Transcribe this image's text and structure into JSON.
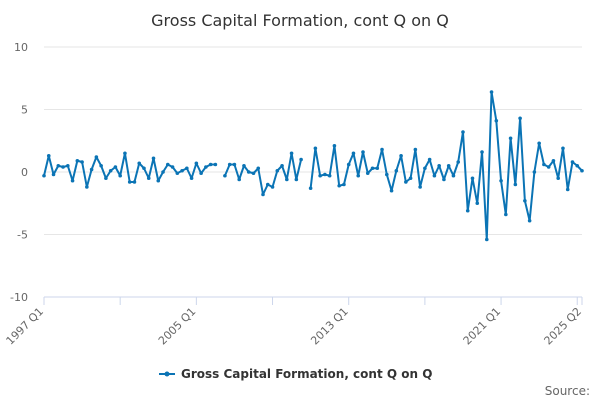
{
  "chart_data": {
    "type": "line",
    "title": "Gross Capital Formation, cont Q on Q",
    "legend_position": "bottom",
    "source_label": "Source:",
    "x_tick_labels": [
      "1997 Q1",
      "2005 Q1",
      "2013 Q1",
      "2021 Q1",
      "2025 Q2"
    ],
    "y_tick_labels": [
      "10",
      "5",
      "0",
      "-5",
      "-10"
    ],
    "ylim": [
      -10,
      10
    ],
    "grid": true,
    "series": [
      {
        "name": "Gross Capital Formation, cont Q on Q",
        "color": "#0b74b5",
        "start": "1997 Q1",
        "end": "2025 Q2",
        "values": [
          -0.3,
          1.3,
          -0.2,
          0.5,
          0.4,
          0.5,
          -0.7,
          0.9,
          0.8,
          -1.2,
          0.2,
          1.2,
          0.5,
          -0.5,
          0.1,
          0.4,
          -0.3,
          1.5,
          -0.8,
          -0.8,
          0.7,
          0.3,
          -0.5,
          1.1,
          -0.7,
          0.0,
          0.6,
          0.4,
          -0.1,
          0.1,
          0.3,
          -0.5,
          0.7,
          -0.1,
          0.4,
          0.6,
          0.6,
          null,
          -0.3,
          0.6,
          0.6,
          -0.6,
          0.5,
          0.0,
          -0.1,
          0.3,
          -1.8,
          -1.0,
          -1.2,
          0.1,
          0.5,
          -0.6,
          1.5,
          -0.6,
          1.0,
          null,
          -1.3,
          1.9,
          -0.3,
          -0.2,
          -0.3,
          2.1,
          -1.1,
          -1.0,
          0.6,
          1.5,
          -0.3,
          1.6,
          -0.1,
          0.3,
          0.3,
          1.8,
          -0.2,
          -1.5,
          0.1,
          1.3,
          -0.8,
          -0.5,
          1.8,
          -1.2,
          0.3,
          1.0,
          -0.3,
          0.5,
          -0.6,
          0.5,
          -0.3,
          0.8,
          3.2,
          -3.1,
          -0.5,
          -2.5,
          1.6,
          -5.4,
          6.4,
          4.1,
          -0.7,
          -3.4,
          2.7,
          -1.0,
          4.3,
          -2.3,
          -3.9,
          0.0,
          2.3,
          0.6,
          0.4,
          0.9,
          -0.5,
          1.9,
          -1.4,
          0.8,
          0.5,
          0.1
        ]
      }
    ]
  }
}
